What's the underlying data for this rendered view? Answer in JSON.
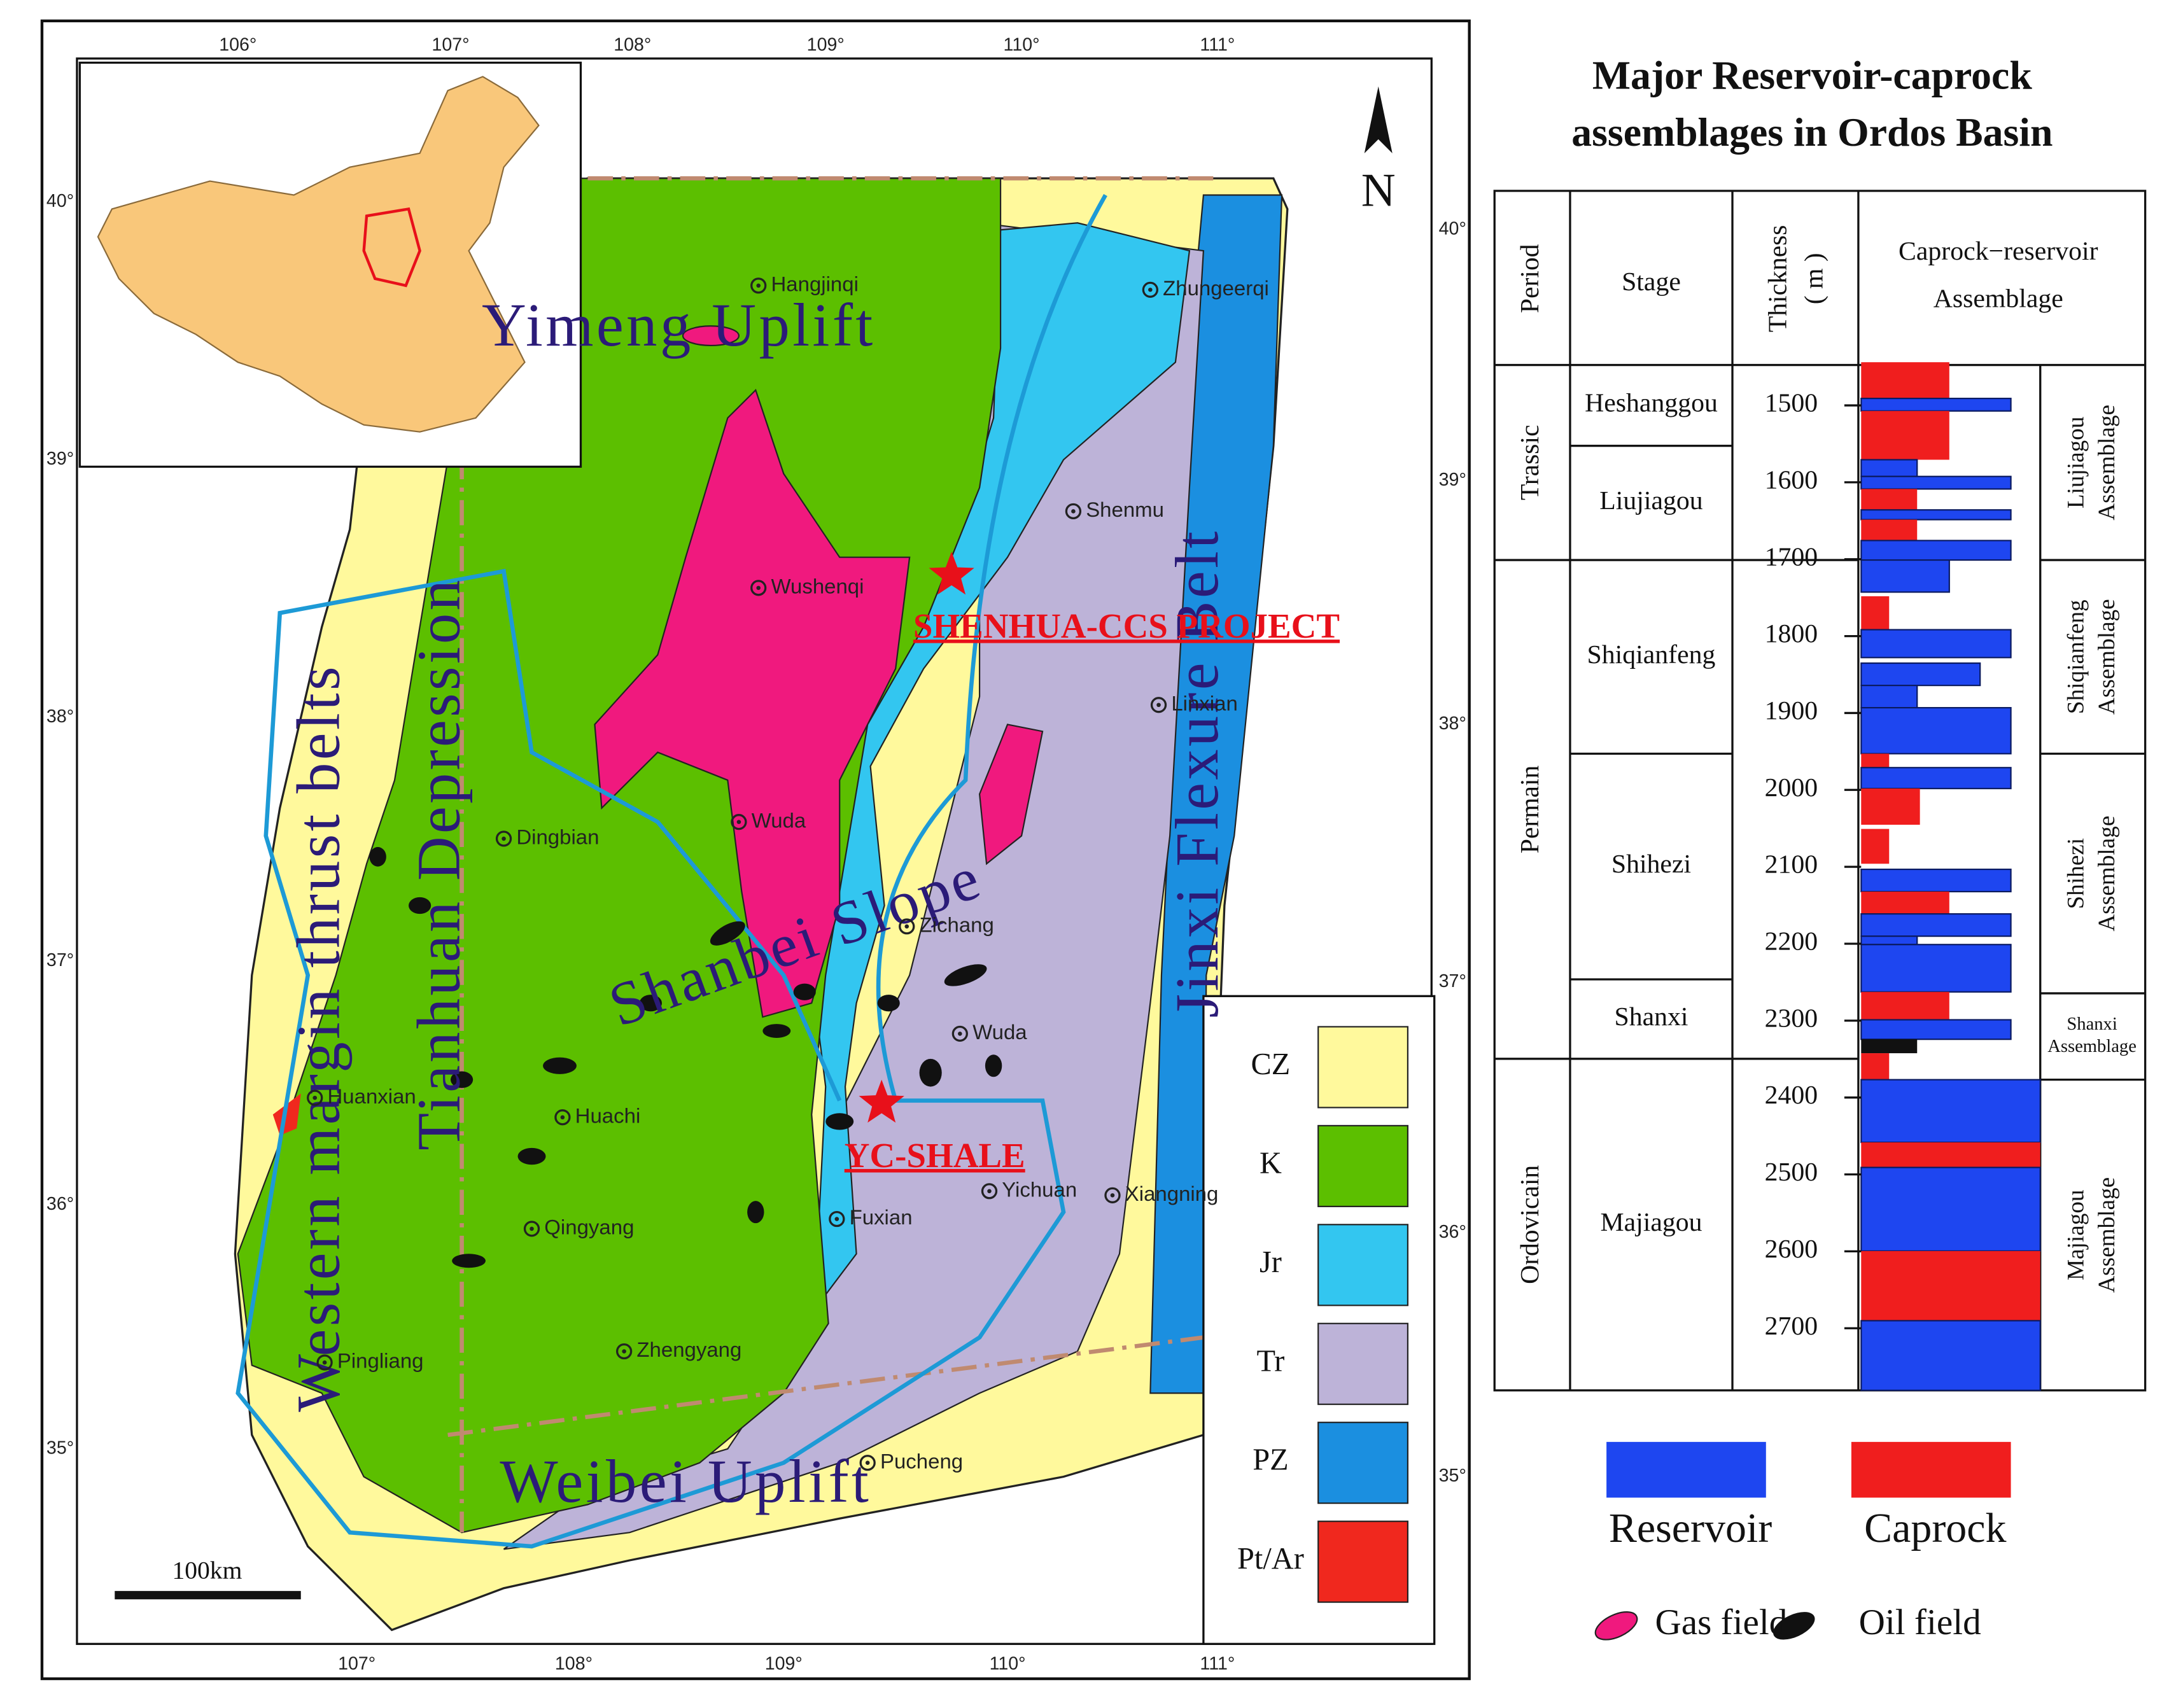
{
  "map": {
    "top_ticks": [
      "106°",
      "107°",
      "108°",
      "109°",
      "110°",
      "111°"
    ],
    "bottom_ticks": [
      "107°",
      "108°",
      "109°",
      "110°",
      "111°"
    ],
    "left_ticks": [
      "40°",
      "39°",
      "38°",
      "37°",
      "36°",
      "35°"
    ],
    "right_ticks": [
      "40°",
      "39°",
      "38°",
      "37°",
      "36°",
      "35°"
    ],
    "north": "N",
    "regions": [
      "Yimeng Uplift",
      "Tianhuan Depression",
      "Western margin thrust belts",
      "Shanbei Slope",
      "Jinxi Flexure Belt",
      "Weibei Uplift"
    ],
    "cities": [
      "Hangjinqi",
      "Zhungeerqi",
      "Shenmu",
      "Wushenqi",
      "Linxian",
      "Wuda",
      "Dingbian",
      "Zichang",
      "Wuda",
      "Huanxian",
      "Huachi",
      "Qingyang",
      "Fuxian",
      "Yichuan",
      "Xiangning",
      "Pingliang",
      "Zhengyang",
      "Pucheng"
    ],
    "projects": [
      "SHENHUA-CCS PROJECT",
      "YC-SHALE"
    ],
    "scale_bar": "100km",
    "legend": [
      {
        "label": "CZ",
        "color": "#fff99c"
      },
      {
        "label": "K",
        "color": "#5cbf00"
      },
      {
        "label": "Jr",
        "color": "#33c6f0"
      },
      {
        "label": "Tr",
        "color": "#bdb3d8"
      },
      {
        "label": "PZ",
        "color": "#1b8fe0"
      },
      {
        "label": "Pt/Ar",
        "color": "#f0281e"
      }
    ]
  },
  "column": {
    "title": [
      "Major Reservoir-caprock",
      "assemblages in Ordos Basin"
    ],
    "headers": {
      "period": "Period",
      "stage": "Stage",
      "thickness": [
        "Thickness",
        "( m )"
      ],
      "assemblage": [
        "Caprock−reservoir",
        "Assemblage"
      ]
    },
    "periods": [
      "Trassic",
      "Permain",
      "Ordovicain"
    ],
    "stages": [
      "Heshanggou",
      "Liujiagou",
      "Shiqianfeng",
      "Shihezi",
      "Shanxi",
      "Majiagou"
    ],
    "thickness_ticks": [
      1500,
      1600,
      1700,
      1800,
      1900,
      2000,
      2100,
      2200,
      2300,
      2400,
      2500,
      2600,
      2700
    ],
    "assemblages": [
      [
        "Liujiagou",
        "Assemblage"
      ],
      [
        "Shiqianfeng",
        "Assemblage"
      ],
      [
        "Shihezi",
        "Assemblage"
      ],
      [
        "Shanxi",
        "Assemblage"
      ],
      [
        "Majiagou",
        "Assemblage"
      ]
    ],
    "legend": [
      {
        "label": "Reservoir",
        "color": "#1e46f0"
      },
      {
        "label": "Caprock",
        "color": "#f01e1e"
      }
    ],
    "field_legend": [
      "Gas field",
      "Oil field"
    ]
  }
}
